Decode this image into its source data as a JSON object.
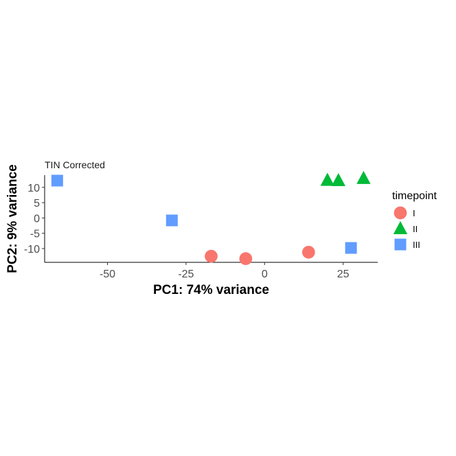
{
  "chart_data": {
    "type": "scatter",
    "title": "TIN Corrected",
    "xlabel": "PC1: 74% variance",
    "ylabel": "PC2: 9% variance",
    "xlim": [
      -70,
      36
    ],
    "ylim": [
      -14.5,
      14
    ],
    "x_ticks": [
      -50,
      -25,
      0,
      25
    ],
    "x_tick_labels": [
      "-50",
      "-25",
      "0",
      "25"
    ],
    "y_ticks": [
      10,
      5,
      0,
      -5,
      -10
    ],
    "y_tick_labels": [
      "10",
      "5",
      "0",
      "-5",
      "-10"
    ],
    "grid": false,
    "legend": {
      "title": "timepoint",
      "position": "right"
    },
    "series": [
      {
        "name": "I",
        "marker": "circle",
        "color": "#F8766D",
        "points": [
          {
            "x": -17,
            "y": -12.5
          },
          {
            "x": -6,
            "y": -13.3
          },
          {
            "x": 14,
            "y": -11.2
          }
        ]
      },
      {
        "name": "II",
        "marker": "triangle",
        "color": "#00BA38",
        "points": [
          {
            "x": 20,
            "y": 12.3
          },
          {
            "x": 23.5,
            "y": 12.2
          },
          {
            "x": 31.5,
            "y": 12.9
          }
        ]
      },
      {
        "name": "III",
        "marker": "square",
        "color": "#619CFF",
        "points": [
          {
            "x": -66,
            "y": 12.2
          },
          {
            "x": -29.5,
            "y": -0.8
          },
          {
            "x": 27.5,
            "y": -9.8
          }
        ]
      }
    ]
  }
}
